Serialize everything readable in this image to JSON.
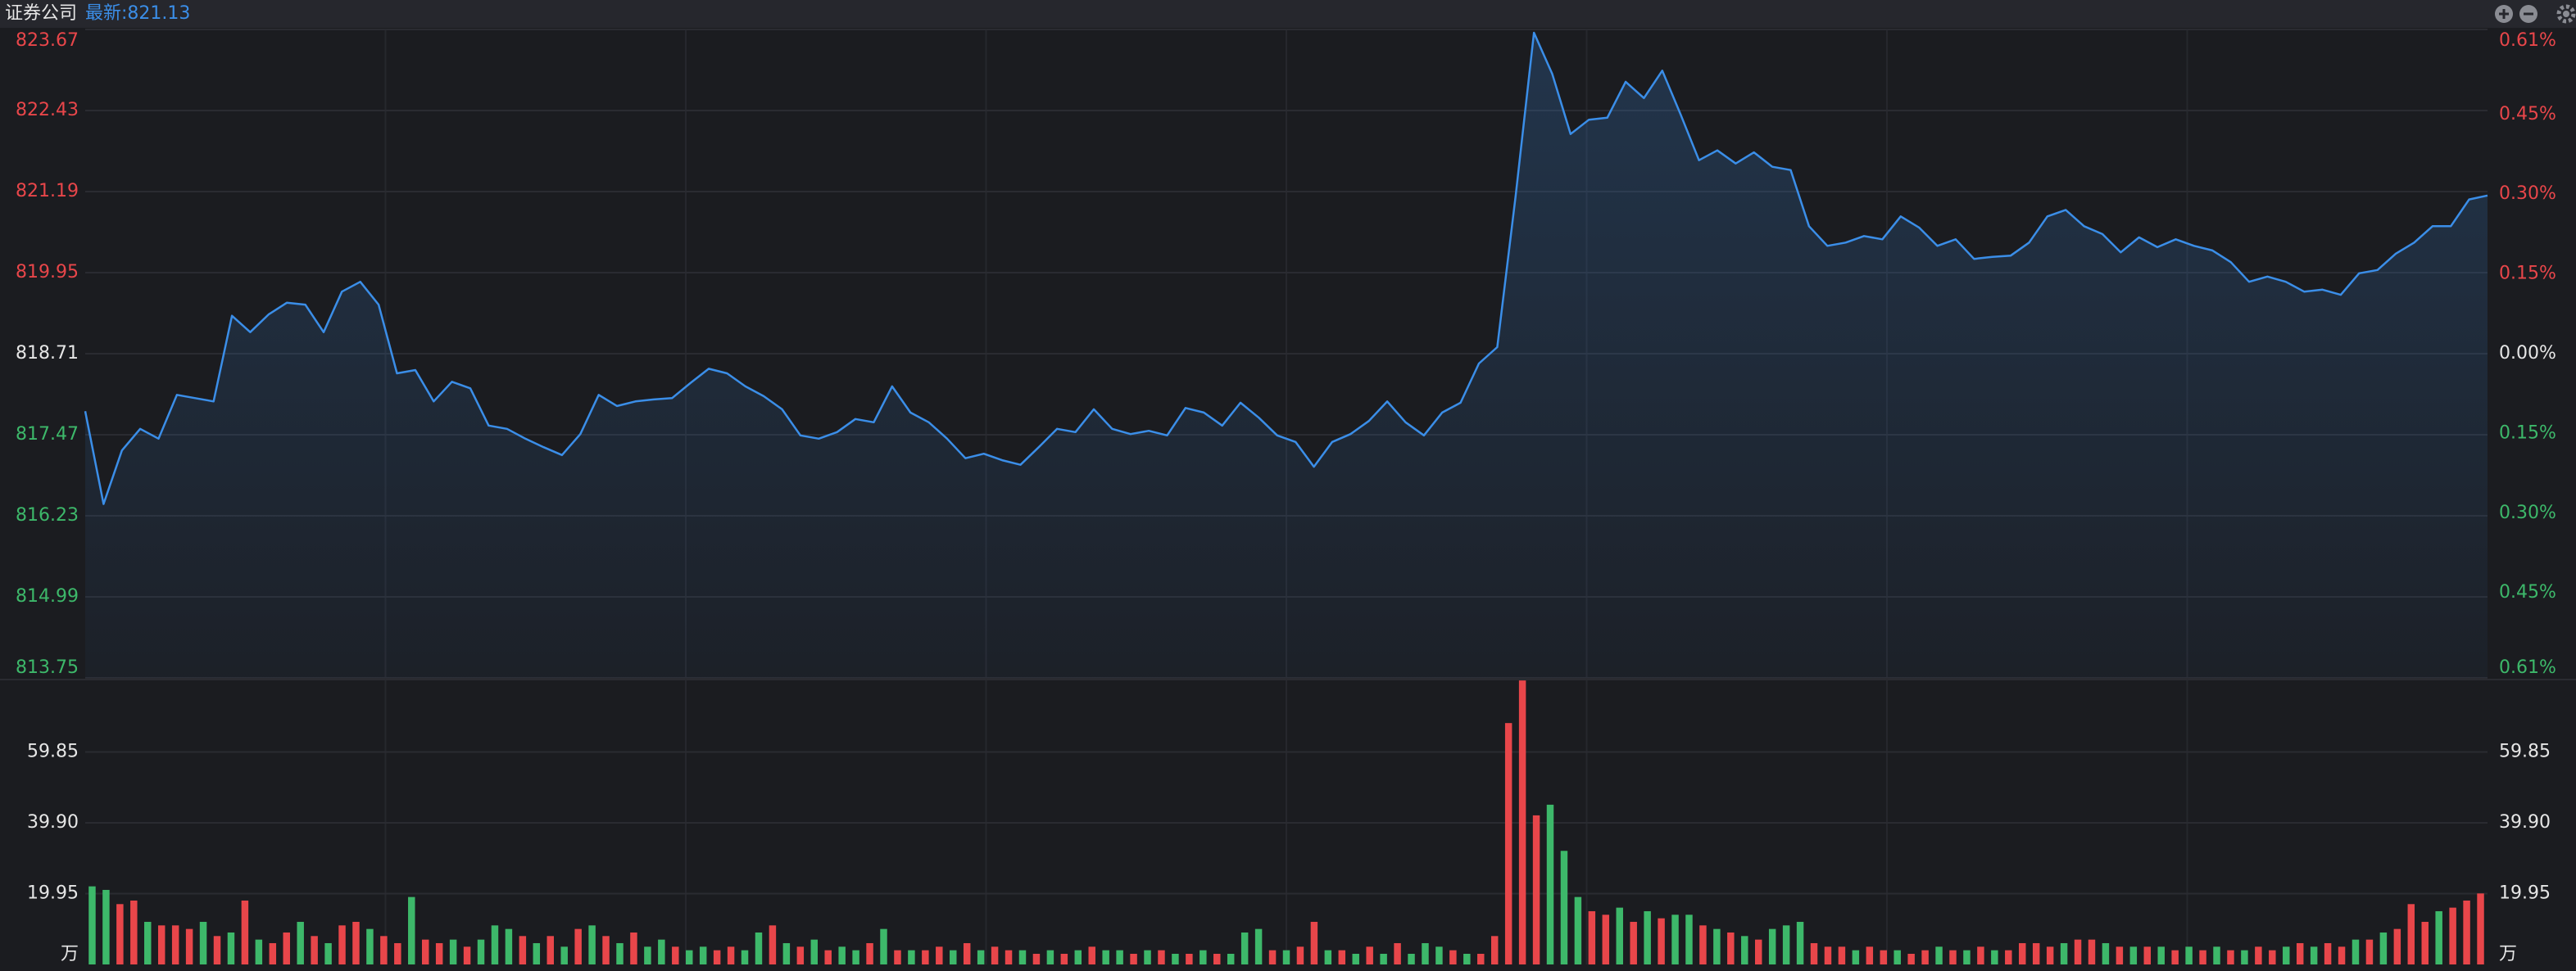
{
  "chart_data": [
    {
      "type": "line",
      "title": "证券公司",
      "subtitle": "最新:821.13",
      "color": "#3b8ee8",
      "up_color": "#e8464a",
      "down_color": "#3db86a",
      "flat_color": "#e6e6e6",
      "grid": true,
      "values": [
        817.83,
        816.41,
        817.23,
        817.56,
        817.41,
        818.08,
        818.03,
        817.98,
        819.29,
        819.04,
        819.31,
        819.49,
        819.46,
        819.04,
        819.66,
        819.81,
        819.46,
        818.41,
        818.46,
        817.98,
        818.28,
        818.18,
        817.61,
        817.56,
        817.41,
        817.28,
        817.16,
        817.48,
        818.08,
        817.91,
        817.98,
        818.01,
        818.03,
        818.26,
        818.48,
        818.41,
        818.21,
        818.06,
        817.86,
        817.46,
        817.41,
        817.51,
        817.71,
        817.66,
        818.21,
        817.81,
        817.66,
        817.41,
        817.11,
        817.18,
        817.08,
        817.01,
        817.28,
        817.56,
        817.51,
        817.86,
        817.56,
        817.48,
        817.53,
        817.46,
        817.88,
        817.81,
        817.61,
        817.96,
        817.73,
        817.46,
        817.36,
        816.98,
        817.36,
        817.48,
        817.68,
        817.98,
        817.66,
        817.46,
        817.81,
        817.96,
        818.56,
        818.81,
        821.12,
        823.62,
        822.99,
        822.07,
        822.29,
        822.32,
        822.87,
        822.62,
        823.04,
        822.37,
        821.67,
        821.82,
        821.62,
        821.79,
        821.57,
        821.52,
        820.66,
        820.36,
        820.41,
        820.51,
        820.46,
        820.81,
        820.64,
        820.36,
        820.46,
        820.16,
        820.19,
        820.21,
        820.41,
        820.81,
        820.91,
        820.66,
        820.54,
        820.26,
        820.49,
        820.34,
        820.46,
        820.36,
        820.29,
        820.11,
        819.81,
        819.89,
        819.81,
        819.66,
        819.69,
        819.61,
        819.94,
        819.99,
        820.24,
        820.41,
        820.66,
        820.66,
        821.07,
        821.13
      ],
      "ylim": [
        813.75,
        823.67
      ],
      "yticks": [
        823.67,
        822.43,
        821.19,
        819.95,
        818.71,
        817.47,
        816.23,
        814.99,
        813.75
      ],
      "y2lim": [
        -0.61,
        0.61
      ],
      "y2ticks": [
        {
          "value": 0.61,
          "label": "0.61%"
        },
        {
          "value": 0.45,
          "label": "0.45%"
        },
        {
          "value": 0.3,
          "label": "0.30%"
        },
        {
          "value": 0.15,
          "label": "0.15%"
        },
        {
          "value": 0,
          "label": "0.00%"
        },
        {
          "value": -0.15,
          "label": "0.15%"
        },
        {
          "value": -0.3,
          "label": "0.30%"
        },
        {
          "value": -0.45,
          "label": "0.45%"
        },
        {
          "value": -0.61,
          "label": "0.61%"
        }
      ]
    },
    {
      "type": "bar",
      "unit": "万",
      "up_color": "#e8464a",
      "down_color": "#3db86a",
      "grid": true,
      "values": [
        22,
        21,
        17,
        18,
        12,
        11,
        11,
        10,
        12,
        8,
        9,
        18,
        7,
        6,
        9,
        12,
        8,
        6,
        11,
        12,
        10,
        8,
        6,
        19,
        7,
        6,
        7,
        5,
        7,
        11,
        10,
        8,
        6,
        8,
        5,
        10,
        11,
        8,
        6,
        9,
        5,
        7,
        5,
        4,
        5,
        4,
        5,
        4,
        9,
        11,
        6,
        5,
        7,
        4,
        5,
        4,
        6,
        10,
        4,
        4,
        4,
        5,
        4,
        6,
        4,
        5,
        4,
        4,
        3,
        4,
        3,
        4,
        5,
        4,
        4,
        3,
        4,
        4,
        3,
        3,
        4,
        3,
        3,
        9,
        10,
        4,
        4,
        5,
        12,
        4,
        4,
        3,
        5,
        3,
        6,
        3,
        6,
        5,
        4,
        3,
        3,
        8,
        68,
        80,
        42,
        45,
        32,
        19,
        15,
        14,
        16,
        12,
        15,
        13,
        14,
        14,
        11,
        10,
        9,
        8,
        7,
        10,
        11,
        12,
        6,
        5,
        5,
        4,
        5,
        4,
        4,
        3,
        4,
        5,
        4,
        4,
        5,
        4,
        4,
        6,
        6,
        5,
        6,
        7,
        7,
        6,
        5,
        5,
        5,
        5,
        4,
        5,
        4,
        5,
        4,
        4,
        5,
        4,
        5,
        6,
        5,
        6,
        5,
        7,
        7,
        9,
        10,
        17,
        12,
        15,
        16,
        18,
        20
      ],
      "up": [
        false,
        false,
        true,
        true,
        false,
        true,
        true,
        true,
        false,
        true,
        false,
        true,
        false,
        true,
        true,
        false,
        true,
        false,
        true,
        true,
        false,
        true,
        true,
        false,
        true,
        true,
        false,
        true,
        false,
        false,
        false,
        true,
        false,
        true,
        false,
        true,
        false,
        true,
        false,
        true,
        false,
        false,
        true,
        false,
        false,
        true,
        true,
        false,
        false,
        true,
        false,
        true,
        false,
        true,
        false,
        false,
        true,
        false,
        true,
        false,
        true,
        true,
        false,
        true,
        false,
        true,
        true,
        false,
        true,
        false,
        true,
        false,
        true,
        false,
        false,
        true,
        false,
        true,
        false,
        true,
        false,
        true,
        false,
        false,
        false,
        true,
        false,
        true,
        true,
        false,
        true,
        false,
        true,
        false,
        true,
        false,
        false,
        false,
        true,
        false,
        true,
        true,
        true,
        true,
        true,
        false,
        false,
        false,
        true,
        true,
        false,
        true,
        false,
        true,
        false,
        false,
        true,
        false,
        true,
        false,
        true,
        false,
        false,
        false,
        true,
        true,
        true,
        false,
        true,
        true,
        false,
        true,
        true,
        false,
        true,
        false,
        true,
        false,
        true,
        true,
        true,
        true,
        false,
        true,
        true,
        false,
        true,
        false,
        true,
        false,
        true,
        false,
        true,
        false,
        true,
        false,
        true,
        true,
        false,
        true,
        false,
        true,
        true,
        false,
        true,
        false,
        true,
        true,
        true,
        false,
        true,
        true,
        true
      ],
      "ylim": [
        0,
        79.8
      ],
      "yticks": [
        19.95,
        {
          "value": 39.9,
          "label": "39.90"
        },
        59.85
      ]
    }
  ]
}
